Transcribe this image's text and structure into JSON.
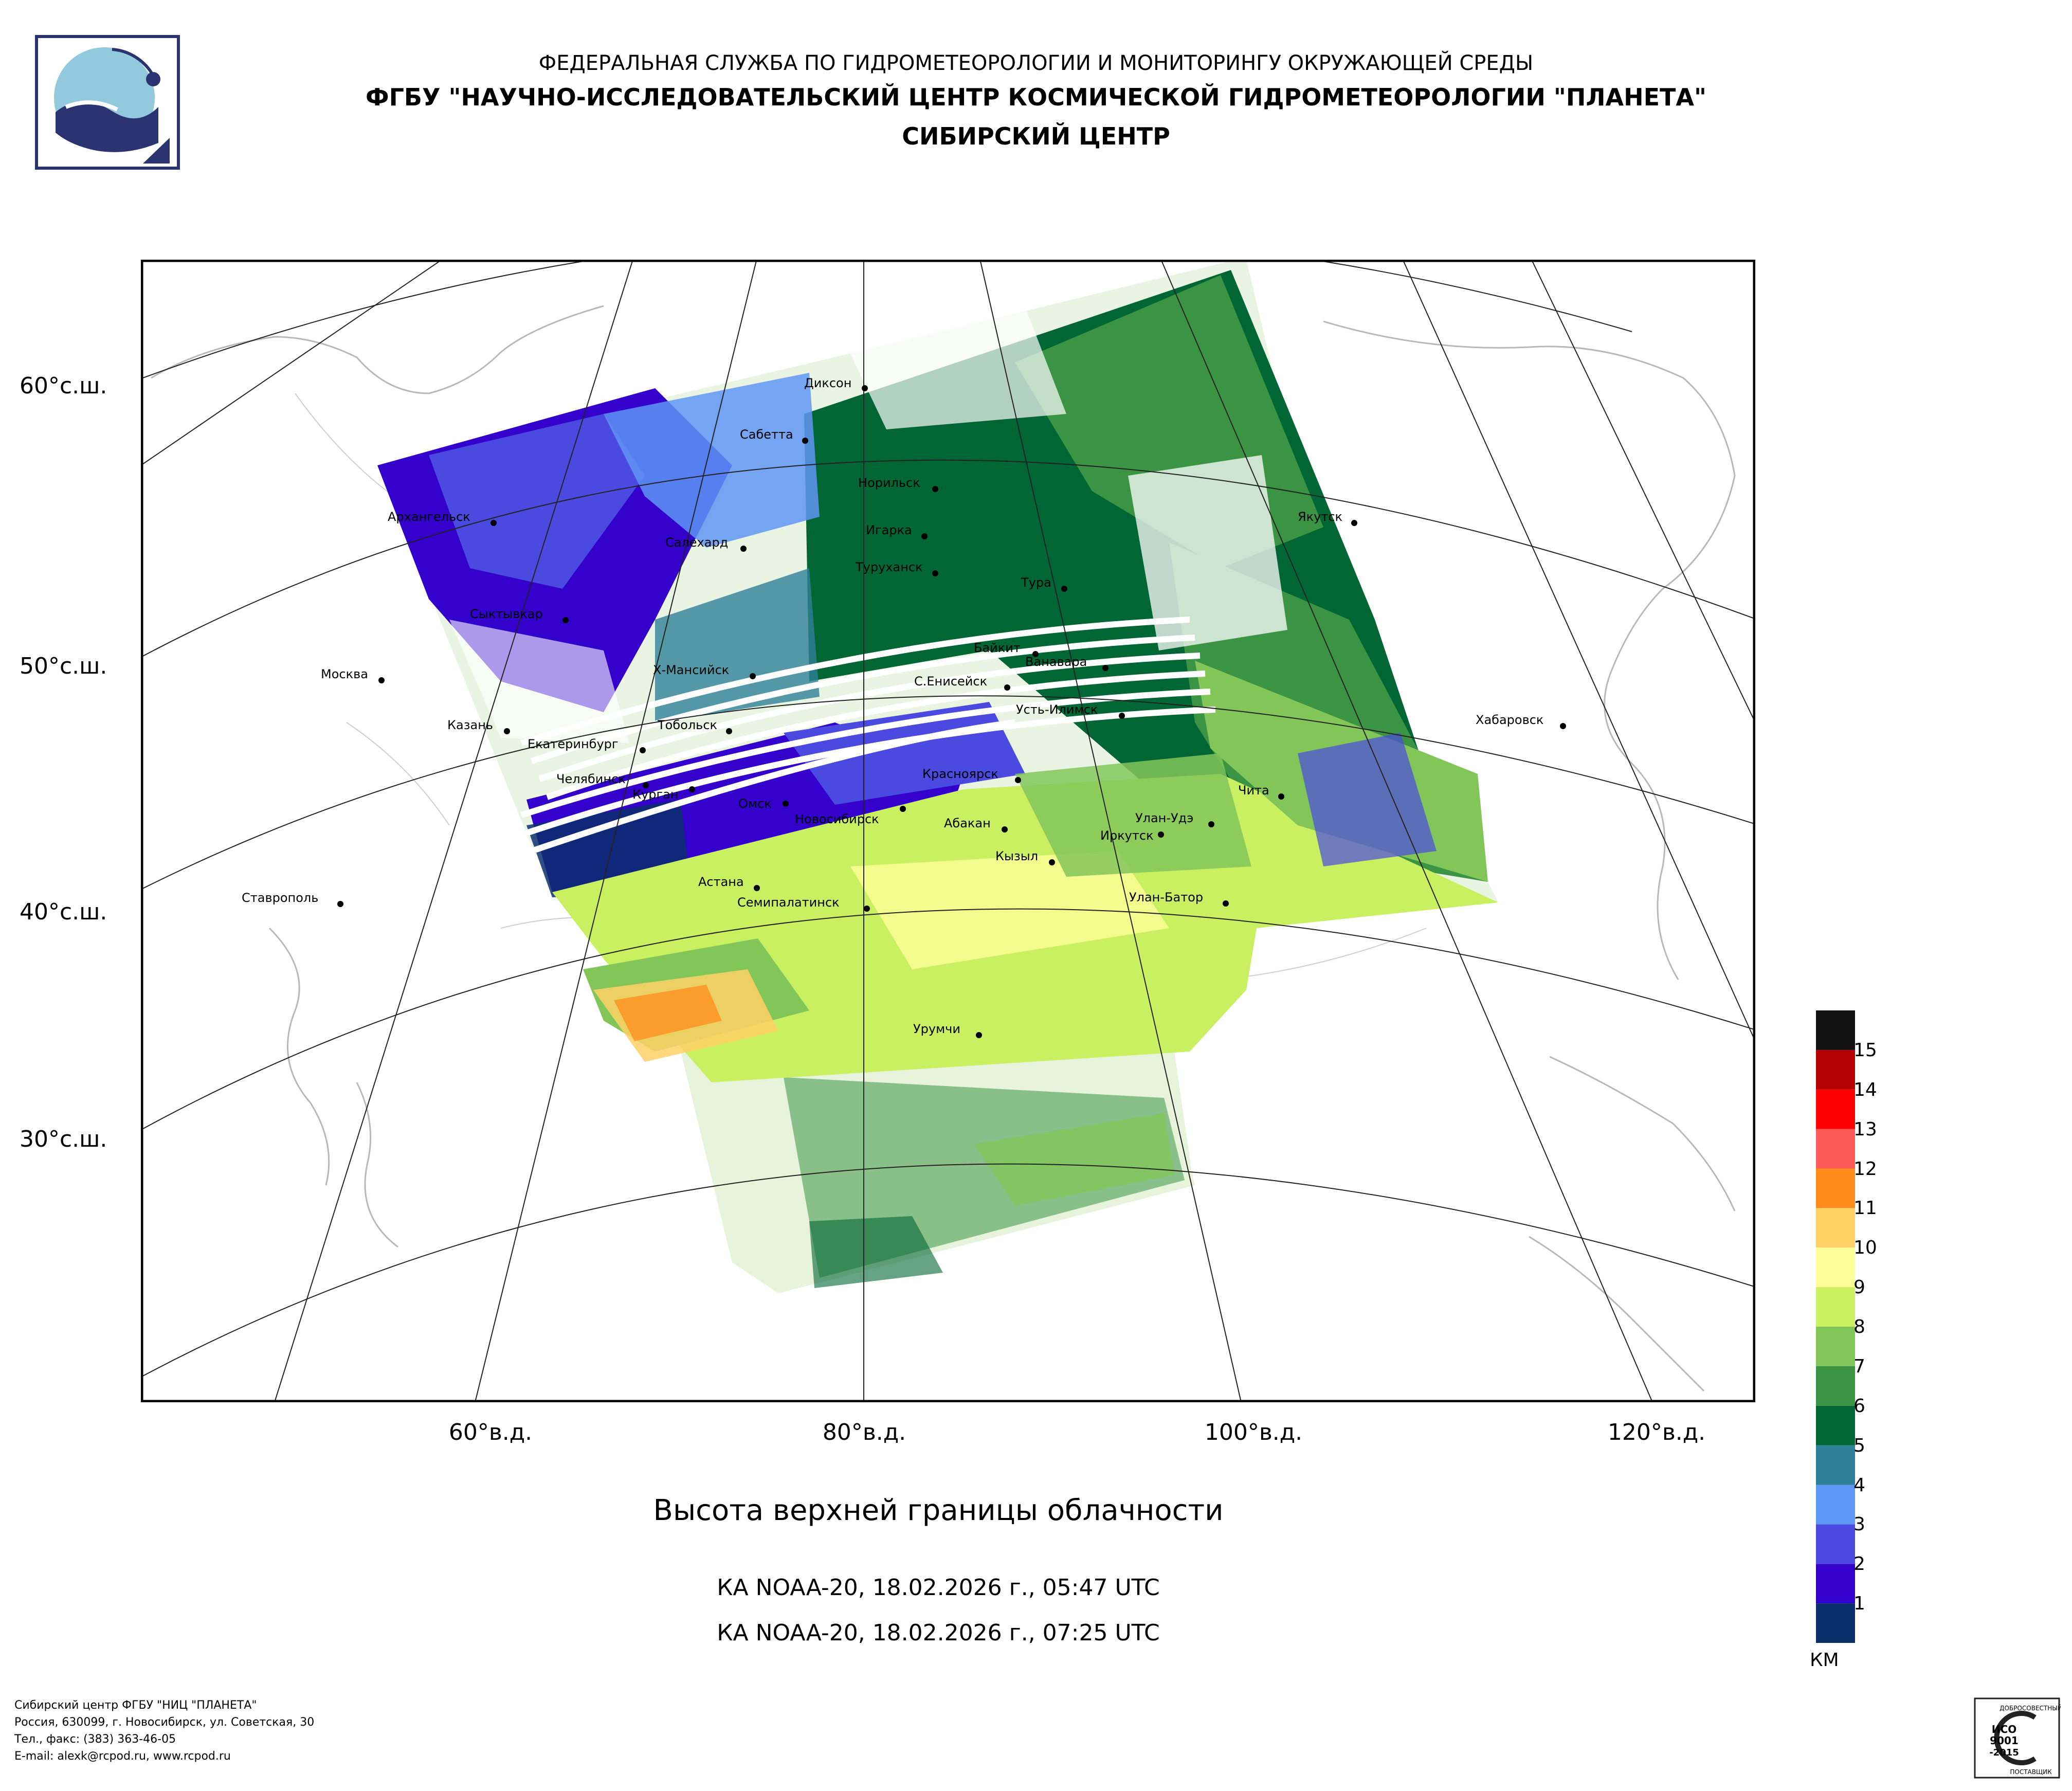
{
  "header": {
    "line1": "ФЕДЕРАЛЬНАЯ СЛУЖБА ПО ГИДРОМЕТЕОРОЛОГИИ И МОНИТОРИНГУ ОКРУЖАЮЩЕЙ СРЕДЫ",
    "line2": "ФГБУ \"НАУЧНО-ИССЛЕДОВАТЕЛЬСКИЙ ЦЕНТР КОСМИЧЕСКОЙ ГИДРОМЕТЕОРОЛОГИИ \"ПЛАНЕТА\"",
    "line3": "СИБИРСКИЙ ЦЕНТР"
  },
  "map": {
    "title": "Высота верхней границы облачности",
    "passes": [
      "КА NOAA-20, 18.02.2026 г., 05:47 UTC",
      "КА NOAA-20, 18.02.2026 г., 07:25 UTC"
    ],
    "lat_labels": [
      "60°с.ш.",
      "50°с.ш.",
      "40°с.ш.",
      "30°с.ш."
    ],
    "lon_labels": [
      "60°в.д.",
      "80°в.д.",
      "100°в.д.",
      "120°в.д."
    ],
    "cities": [
      "Диксон",
      "Сабетта",
      "Норильск",
      "Архангельск",
      "Салехард",
      "Игарка",
      "Туруханск",
      "Якутск",
      "Тура",
      "Сыктывкар",
      "Байкит",
      "Ванавара",
      "Москва",
      "Х-Мансийск",
      "С.Енисейск",
      "Усть-Илимск",
      "Хабаровск",
      "Казань",
      "Тобольск",
      "Екатеринбург",
      "Челябинск",
      "Курган",
      "Красноярск",
      "Чита",
      "Омск",
      "Новосибирск",
      "Абакан",
      "Улан-Удэ",
      "Иркутск",
      "Кызыл",
      "Астана",
      "Ставрополь",
      "Семипалатинск",
      "Улан-Батор",
      "Урумчи"
    ]
  },
  "legend": {
    "unit": "КМ",
    "levels": [
      "1",
      "2",
      "3",
      "4",
      "5",
      "6",
      "7",
      "8",
      "9",
      "10",
      "11",
      "12",
      "13",
      "14",
      "15"
    ],
    "colors": [
      "#0a2f6b",
      "#3300cc",
      "#4a4ae0",
      "#5f95f5",
      "#2e8098",
      "#006633",
      "#3b9443",
      "#82c65a",
      "#c8f060",
      "#ffff99",
      "#ffd166",
      "#ff8c1a",
      "#ff5a5a",
      "#ff0000",
      "#b30000",
      "#111111"
    ]
  },
  "footer": {
    "lines": [
      "Сибирский центр ФГБУ \"НИЦ \"ПЛАНЕТА\"",
      "Россия, 630099, г. Новосибирск, ул. Советская, 30",
      "Тел., факс: (383) 363-46-05",
      "E-mail: alexk@rcpod.ru, www.rcpod.ru"
    ],
    "iso": [
      "ДОБРОСОВЕСТНЫЙ",
      "ИСО",
      "9001",
      "-2015",
      "ПОСТАВЩИК"
    ]
  }
}
